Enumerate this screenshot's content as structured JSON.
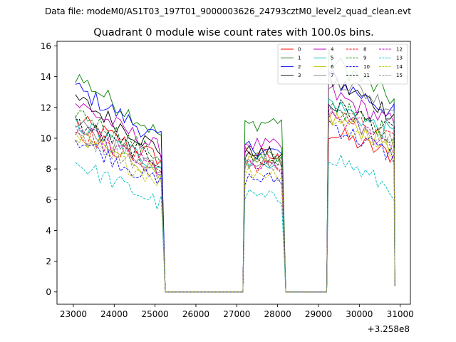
{
  "header": {
    "data_file": "Data file: modeM0/AS1T03_197T01_9000003626_24793cztM0_level2_quad_clean.evt"
  },
  "chart_data": {
    "type": "line",
    "title": "Quadrant 0 module wise count rates with 100.0s bins.",
    "xlabel": "",
    "ylabel": "",
    "x_offset_label": "+3.258e8",
    "xlim": [
      22600,
      31250
    ],
    "ylim": [
      -0.8,
      16.3
    ],
    "x_ticks": [
      23000,
      24000,
      25000,
      26000,
      27000,
      28000,
      29000,
      30000,
      31000
    ],
    "x_tick_labels": [
      "23000",
      "24000",
      "25000",
      "26000",
      "27000",
      "28000",
      "29000",
      "30000",
      "31000"
    ],
    "y_ticks": [
      0,
      2,
      4,
      6,
      8,
      10,
      12,
      14,
      16
    ],
    "y_tick_labels": [
      "0",
      "2",
      "4",
      "6",
      "8",
      "10",
      "12",
      "14",
      "16"
    ],
    "legend_position": "top-right",
    "segments": [
      {
        "start": 23050,
        "end": 25150,
        "ramp_in": 23050,
        "ramp_out": 25250
      },
      {
        "start": 27200,
        "end": 28100,
        "ramp_in": 27150,
        "ramp_out": 28200
      },
      {
        "start": 29250,
        "end": 30850,
        "ramp_in": 29200,
        "ramp_out": 30870
      }
    ],
    "series": [
      {
        "name": "0",
        "color": "#ff0000",
        "dash": false,
        "level": [
          11.2,
          9.2,
          8.6,
          10.4
        ],
        "decay": [
          0.23,
          0.15
        ]
      },
      {
        "name": "1",
        "color": "#008000",
        "dash": false,
        "level": [
          14.1,
          10.8,
          11.2,
          15.2
        ],
        "decay": [
          0.28,
          0.18
        ]
      },
      {
        "name": "2",
        "color": "#0000ff",
        "dash": false,
        "level": [
          13.3,
          9.5,
          9.0,
          14.0
        ],
        "decay": [
          0.26,
          0.17
        ]
      },
      {
        "name": "3",
        "color": "#000000",
        "dash": false,
        "level": [
          12.6,
          9.1,
          8.9,
          13.8
        ],
        "decay": [
          0.27,
          0.16
        ]
      },
      {
        "name": "4",
        "color": "#bf00bf",
        "dash": false,
        "level": [
          12.3,
          9.7,
          9.4,
          13.0
        ],
        "decay": [
          0.25,
          0.16
        ]
      },
      {
        "name": "5",
        "color": "#00bfbf",
        "dash": false,
        "level": [
          11.0,
          8.7,
          8.4,
          12.4
        ],
        "decay": [
          0.26,
          0.18
        ]
      },
      {
        "name": "6",
        "color": "#bfbf00",
        "dash": false,
        "level": [
          10.2,
          8.4,
          8.2,
          11.5
        ],
        "decay": [
          0.24,
          0.17
        ]
      },
      {
        "name": "7",
        "color": "#808080",
        "dash": false,
        "level": [
          10.8,
          8.6,
          8.5,
          14.2
        ],
        "decay": [
          0.25,
          0.16
        ]
      },
      {
        "name": "8",
        "color": "#ff0000",
        "dash": true,
        "level": [
          10.5,
          8.4,
          8.0,
          11.8
        ],
        "decay": [
          0.25,
          0.18
        ]
      },
      {
        "name": "9",
        "color": "#008000",
        "dash": true,
        "level": [
          11.8,
          8.9,
          8.6,
          12.3
        ],
        "decay": [
          0.26,
          0.17
        ]
      },
      {
        "name": "10",
        "color": "#0000ff",
        "dash": true,
        "level": [
          10.0,
          7.4,
          7.3,
          11.0
        ],
        "decay": [
          0.3,
          0.2
        ]
      },
      {
        "name": "11",
        "color": "#000000",
        "dash": true,
        "level": [
          11.0,
          8.8,
          8.3,
          12.3
        ],
        "decay": [
          0.23,
          0.16
        ]
      },
      {
        "name": "12",
        "color": "#bf00bf",
        "dash": true,
        "level": [
          10.6,
          8.2,
          8.0,
          11.6
        ],
        "decay": [
          0.26,
          0.18
        ]
      },
      {
        "name": "13",
        "color": "#00bfbf",
        "dash": true,
        "level": [
          8.4,
          6.3,
          6.0,
          9.0
        ],
        "decay": [
          0.32,
          0.27
        ]
      },
      {
        "name": "14",
        "color": "#bfbf00",
        "dash": true,
        "level": [
          9.8,
          7.8,
          7.7,
          11.3
        ],
        "decay": [
          0.26,
          0.19
        ]
      },
      {
        "name": "15",
        "color": "#808080",
        "dash": true,
        "level": [
          10.3,
          8.5,
          8.4,
          11.9
        ],
        "decay": [
          0.25,
          0.17
        ]
      }
    ]
  }
}
